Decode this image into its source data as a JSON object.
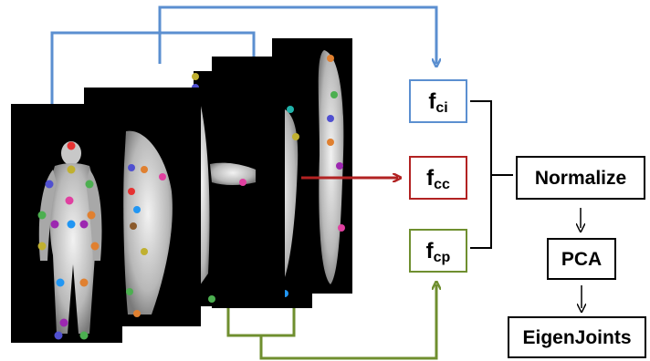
{
  "features": [
    {
      "main": "f",
      "sub": "ci",
      "color": "#5b8fd0"
    },
    {
      "main": "f",
      "sub": "cc",
      "color": "#b22222"
    },
    {
      "main": "f",
      "sub": "cp",
      "color": "#6f8f2f"
    }
  ],
  "pipeline": {
    "normalize": "Normalize",
    "pca": "PCA",
    "eigenjoints": "EigenJoints"
  },
  "colors": {
    "current_arrow": "#b22222",
    "initial_arrow": "#5b8fd0",
    "previous_arrow": "#6f8f2f",
    "frame_background": "#000000",
    "joint_colors": [
      "#e63232",
      "#4caf50",
      "#e08030",
      "#9c27b0",
      "#2196f3",
      "#c0b030",
      "#20b2aa",
      "#e040a0",
      "#5050d0",
      "#8b5a2b"
    ]
  }
}
